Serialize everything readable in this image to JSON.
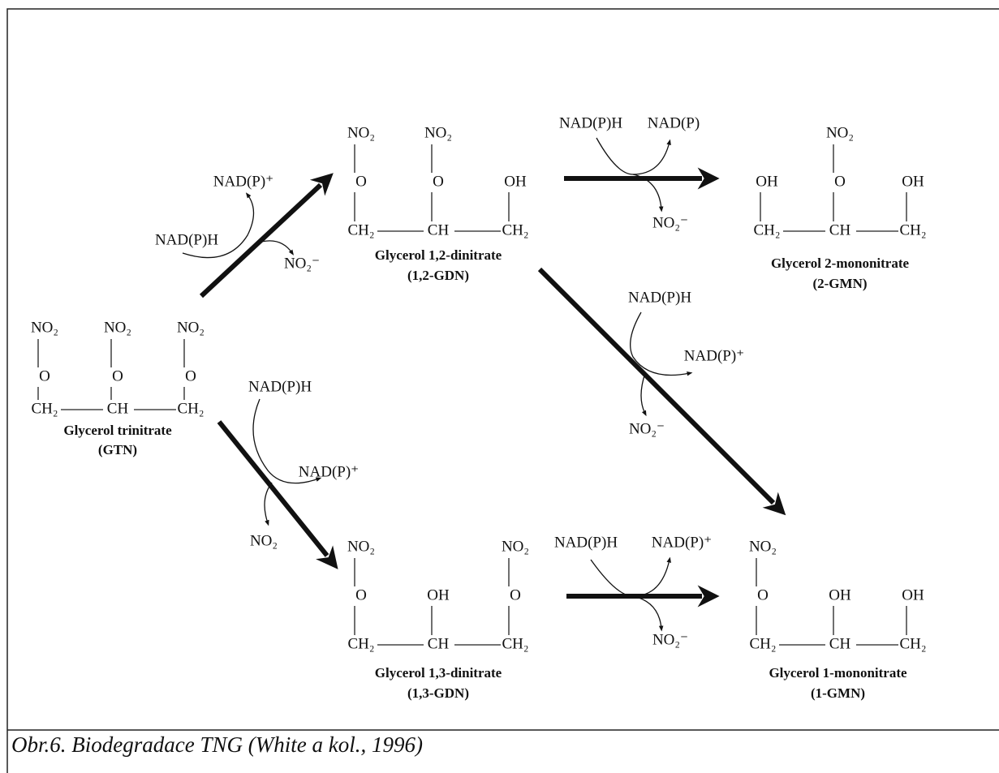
{
  "molecules": [
    {
      "substituents": [
        [
          "NO₂",
          "O"
        ],
        [
          "NO₂",
          "O"
        ],
        [
          "NO₂",
          "O"
        ]
      ],
      "chain": [
        "CH₂",
        "CH",
        "CH₂"
      ],
      "name": "Glycerol trinitrate",
      "abbr": "(GTN)"
    },
    {
      "substituents": [
        [
          "NO₂",
          "O"
        ],
        [
          "NO₂",
          "O"
        ],
        [
          "OH"
        ]
      ],
      "chain": [
        "CH₂",
        "CH",
        "CH₂"
      ],
      "name": "Glycerol 1,2-dinitrate",
      "abbr": "(1,2-GDN)"
    },
    {
      "substituents": [
        [
          "OH"
        ],
        [
          "NO₂",
          "O"
        ],
        [
          "OH"
        ]
      ],
      "chain": [
        "CH₂",
        "CH",
        "CH₂"
      ],
      "name": "Glycerol 2-mononitrate",
      "abbr": "(2-GMN)"
    },
    {
      "substituents": [
        [
          "NO₂",
          "O"
        ],
        [
          "OH"
        ],
        [
          "NO₂",
          "O"
        ]
      ],
      "chain": [
        "CH₂",
        "CH",
        "CH₂"
      ],
      "name": "Glycerol 1,3-dinitrate",
      "abbr": "(1,3-GDN)"
    },
    {
      "substituents": [
        [
          "NO₂",
          "O"
        ],
        [
          "OH"
        ],
        [
          "OH"
        ]
      ],
      "chain": [
        "CH₂",
        "CH",
        "CH₂"
      ],
      "name": "Glycerol 1-mononitrate",
      "abbr": "(1-GMN)"
    }
  ],
  "reactions": [
    {
      "donor": "NAD(P)H",
      "product": "NAD(P)⁺",
      "released": "NO₂⁻"
    },
    {
      "donor": "NAD(P)H",
      "product": "NAD(P)",
      "released": "NO₂⁻"
    },
    {
      "donor": "NAD(P)H",
      "product": "NAD(P)⁺",
      "released": "NO₂⁻"
    },
    {
      "donor": "NAD(P)H",
      "product": "NAD(P)⁺",
      "released": "NO₂"
    },
    {
      "donor": "NAD(P)H",
      "product": "NAD(P)⁺",
      "released": "NO₂⁻"
    }
  ],
  "caption": "Obr.6. Biodegradace TNG (White a kol., 1996)"
}
